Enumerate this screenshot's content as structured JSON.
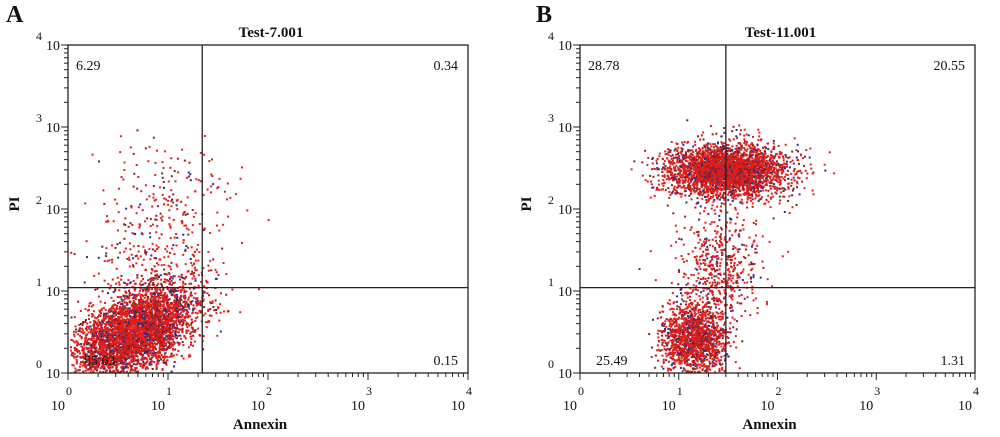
{
  "chart_data": [
    {
      "type": "scatter",
      "panel_label": "A",
      "title": "Test-7.001",
      "xlabel": "Annexin",
      "ylabel": "PI",
      "x_scale": "log",
      "y_scale": "log",
      "xlim": [
        1,
        10000
      ],
      "ylim": [
        1,
        10000
      ],
      "tick_base": "10",
      "tick_exponents": [
        "0",
        "1",
        "2",
        "3",
        "4"
      ],
      "gate": {
        "x": 22,
        "y": 11
      },
      "quadrant_percents": {
        "upper_left": "6.29",
        "upper_right": "0.34",
        "lower_left": "85.63",
        "lower_right": "0.15"
      },
      "point_color": "#e0201b",
      "populations": [
        {
          "center_x": 4.5,
          "center_y": 3.2,
          "spread_x_decades": 0.32,
          "spread_y_decades": 0.3,
          "correlation": 0.55,
          "count": 4200
        },
        {
          "center_x": 9,
          "center_y": 200,
          "spread_x_decades": 0.35,
          "spread_y_decades": 0.28,
          "correlation": 0,
          "count": 130
        },
        {
          "center_x": 7,
          "center_y": 30,
          "spread_x_decades": 0.35,
          "spread_y_decades": 0.28,
          "correlation": 0.2,
          "count": 220
        }
      ]
    },
    {
      "type": "scatter",
      "panel_label": "B",
      "title": "Test-11.001",
      "xlabel": "Annexin",
      "ylabel": "PI",
      "x_scale": "log",
      "y_scale": "log",
      "xlim": [
        1,
        10000
      ],
      "ylim": [
        1,
        10000
      ],
      "tick_base": "10",
      "tick_exponents": [
        "0",
        "1",
        "2",
        "3",
        "4"
      ],
      "gate": {
        "x": 30,
        "y": 11
      },
      "quadrant_percents": {
        "upper_left": "28.78",
        "upper_right": "20.55",
        "lower_left": "25.49",
        "lower_right": "1.31"
      },
      "point_color": "#e0201b",
      "populations": [
        {
          "center_x": 30,
          "center_y": 300,
          "spread_x_decades": 0.3,
          "spread_y_decades": 0.16,
          "correlation": 0,
          "count": 3200
        },
        {
          "center_x": 14,
          "center_y": 2.5,
          "spread_x_decades": 0.16,
          "spread_y_decades": 0.22,
          "correlation": 0,
          "count": 1500
        },
        {
          "center_x": 25,
          "center_y": 20,
          "spread_x_decades": 0.22,
          "spread_y_decades": 0.35,
          "correlation": 0,
          "count": 500
        }
      ]
    }
  ]
}
